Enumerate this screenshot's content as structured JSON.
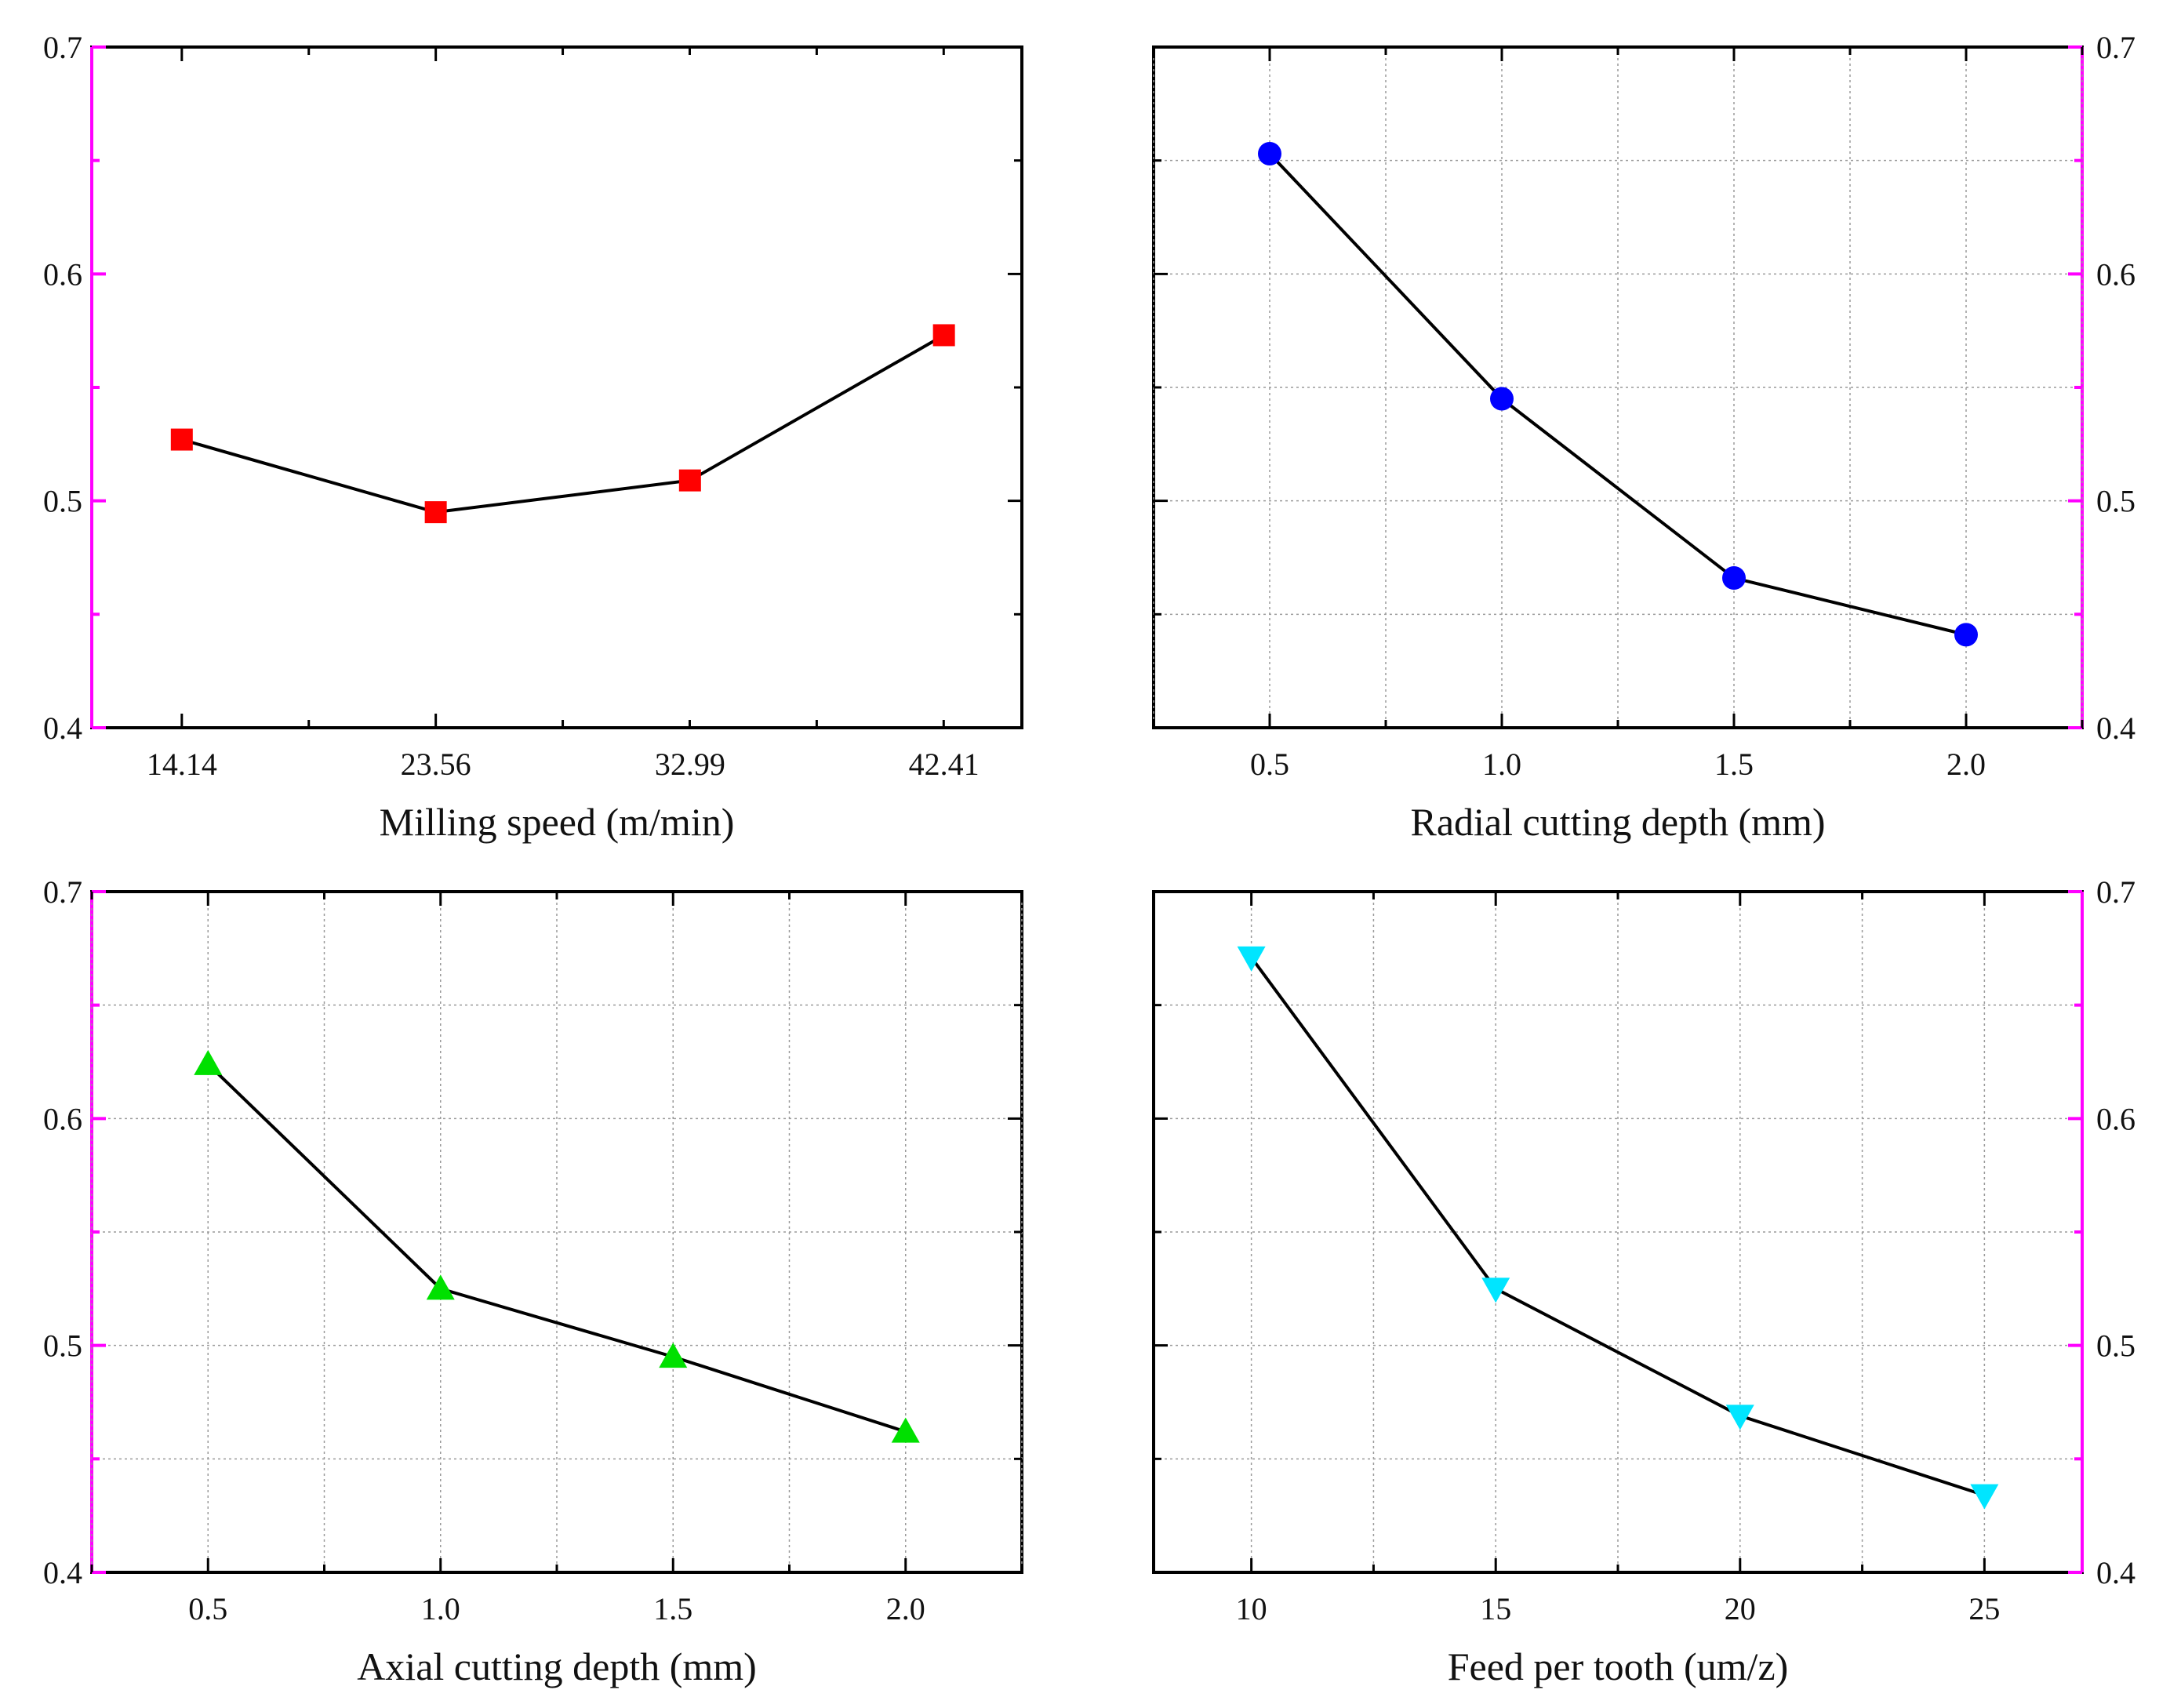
{
  "chart_data": [
    {
      "type": "line",
      "xlabel": "Milling speed (m/min)",
      "ylabel": "",
      "categories": [
        "14.14",
        "23.56",
        "32.99",
        "42.41"
      ],
      "x": [
        14.14,
        23.56,
        32.99,
        42.41
      ],
      "values": [
        0.527,
        0.495,
        0.509,
        0.573
      ],
      "xlim": [
        10.8,
        45.3
      ],
      "ylim": [
        0.4,
        0.7
      ],
      "yticks": [
        "0.4",
        "0.5",
        "0.6",
        "0.7"
      ],
      "marker": "square",
      "marker_color": "#ff0000",
      "grid": false,
      "y_axis_side": "left",
      "highlight_axis_color": "#ff00ff"
    },
    {
      "type": "line",
      "xlabel": "Radial cutting depth (mm)",
      "ylabel": "",
      "categories": [
        "0.5",
        "1.0",
        "1.5",
        "2.0"
      ],
      "x": [
        0.5,
        1.0,
        1.5,
        2.0
      ],
      "values": [
        0.653,
        0.545,
        0.466,
        0.441
      ],
      "xlim": [
        0.25,
        2.25
      ],
      "ylim": [
        0.4,
        0.7
      ],
      "yticks": [
        "0.4",
        "0.5",
        "0.6",
        "0.7"
      ],
      "marker": "circle",
      "marker_color": "#0000ff",
      "grid": true,
      "y_axis_side": "right",
      "highlight_axis_color": "#ff00ff"
    },
    {
      "type": "line",
      "xlabel": "Axial cutting depth (mm)",
      "ylabel": "",
      "categories": [
        "0.5",
        "1.0",
        "1.5",
        "2.0"
      ],
      "x": [
        0.5,
        1.0,
        1.5,
        2.0
      ],
      "values": [
        0.624,
        0.525,
        0.495,
        0.462
      ],
      "xlim": [
        0.25,
        2.25
      ],
      "ylim": [
        0.4,
        0.7
      ],
      "yticks": [
        "0.4",
        "0.5",
        "0.6",
        "0.7"
      ],
      "marker": "triangle-up",
      "marker_color": "#00e000",
      "grid": true,
      "y_axis_side": "left",
      "highlight_axis_color": "#ff00ff"
    },
    {
      "type": "line",
      "xlabel": "Feed per tooth (um/z)",
      "ylabel": "",
      "categories": [
        "10",
        "15",
        "20",
        "25"
      ],
      "x": [
        10,
        15,
        20,
        25
      ],
      "values": [
        0.671,
        0.525,
        0.469,
        0.434
      ],
      "xlim": [
        8,
        27
      ],
      "ylim": [
        0.4,
        0.7
      ],
      "yticks": [
        "0.4",
        "0.5",
        "0.6",
        "0.7"
      ],
      "marker": "triangle-down",
      "marker_color": "#00e5ff",
      "grid": true,
      "y_axis_side": "right",
      "highlight_axis_color": "#ff00ff"
    }
  ]
}
